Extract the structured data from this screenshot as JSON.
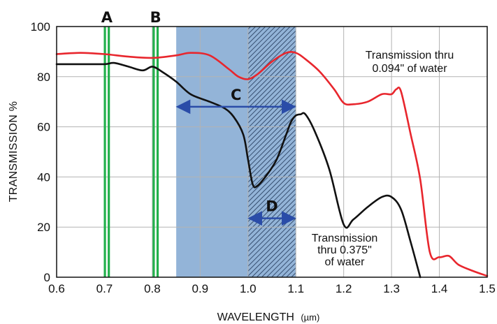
{
  "chart_data": {
    "type": "line",
    "title": "",
    "xlabel": "WAVELENGTH",
    "xlabel_unit": "(µm)",
    "ylabel": "TRANSMISSION %",
    "xlim": [
      0.6,
      1.5
    ],
    "ylim": [
      0,
      100
    ],
    "xticks": [
      "0.6",
      "0.7",
      "0.8",
      "0.9",
      "1.0",
      "1.1",
      "1.2",
      "1.3",
      "1.4",
      "1.5"
    ],
    "xtick_values": [
      0.6,
      0.7,
      0.8,
      0.9,
      1.0,
      1.1,
      1.2,
      1.3,
      1.4,
      1.5
    ],
    "yticks": [
      "0",
      "20",
      "40",
      "60",
      "80",
      "100"
    ],
    "ytick_values": [
      0,
      20,
      40,
      60,
      80,
      100
    ],
    "grid": true,
    "series": [
      {
        "name": "Transmission thru 0.094\" of water",
        "color": "#e8262d",
        "label_lines": [
          "Transmission thru",
          "0.094\" of water"
        ],
        "x": [
          0.6,
          0.65,
          0.7,
          0.75,
          0.8,
          0.85,
          0.88,
          0.92,
          0.96,
          0.98,
          1.0,
          1.02,
          1.05,
          1.08,
          1.1,
          1.12,
          1.15,
          1.18,
          1.2,
          1.22,
          1.25,
          1.28,
          1.3,
          1.31,
          1.32,
          1.34,
          1.36,
          1.38,
          1.4,
          1.42,
          1.44,
          1.47,
          1.5
        ],
        "y": [
          89,
          89.5,
          89,
          88,
          87.5,
          88.5,
          89.5,
          88.5,
          83,
          80,
          79,
          81,
          86,
          89.5,
          89.5,
          87,
          82,
          75,
          69.5,
          69,
          70,
          73,
          73,
          75,
          74,
          57,
          39,
          10,
          8,
          8.5,
          5,
          2.5,
          0.5
        ]
      },
      {
        "name": "Transmission thru 0.375\" of water",
        "color": "#111111",
        "label_lines": [
          "Transmission",
          "thru 0.375\"",
          "of water"
        ],
        "x": [
          0.6,
          0.65,
          0.7,
          0.72,
          0.75,
          0.78,
          0.8,
          0.82,
          0.85,
          0.88,
          0.92,
          0.95,
          0.97,
          0.99,
          1.0,
          1.01,
          1.02,
          1.04,
          1.06,
          1.08,
          1.09,
          1.1,
          1.11,
          1.12,
          1.14,
          1.17,
          1.2,
          1.22,
          1.25,
          1.28,
          1.3,
          1.32,
          1.34,
          1.36
        ],
        "y": [
          85,
          85,
          85,
          85.5,
          84,
          82.5,
          84,
          82,
          78,
          73,
          70,
          67.5,
          64,
          57,
          47,
          37,
          36.5,
          41,
          47,
          57,
          62,
          64.5,
          65,
          65,
          58,
          43,
          21,
          23,
          28,
          32,
          32,
          27,
          14,
          0
        ]
      }
    ],
    "shaded_regions": [
      {
        "x0": 0.85,
        "x1": 1.0,
        "color": "#93b4d8",
        "pattern": "solid"
      },
      {
        "x0": 1.0,
        "x1": 1.1,
        "color": "#93b4d8",
        "pattern": "hatched"
      }
    ],
    "vertical_bands": [
      {
        "label": "A",
        "x": 0.705,
        "color": "#22b04b"
      },
      {
        "label": "B",
        "x": 0.807,
        "color": "#22b04b"
      }
    ],
    "arrows": [
      {
        "label": "C",
        "x0": 0.85,
        "x1": 1.1,
        "y": 68,
        "color": "#2a4ca8"
      },
      {
        "label": "D",
        "x0": 1.0,
        "x1": 1.1,
        "y": 23.5,
        "color": "#2a4ca8"
      }
    ]
  }
}
